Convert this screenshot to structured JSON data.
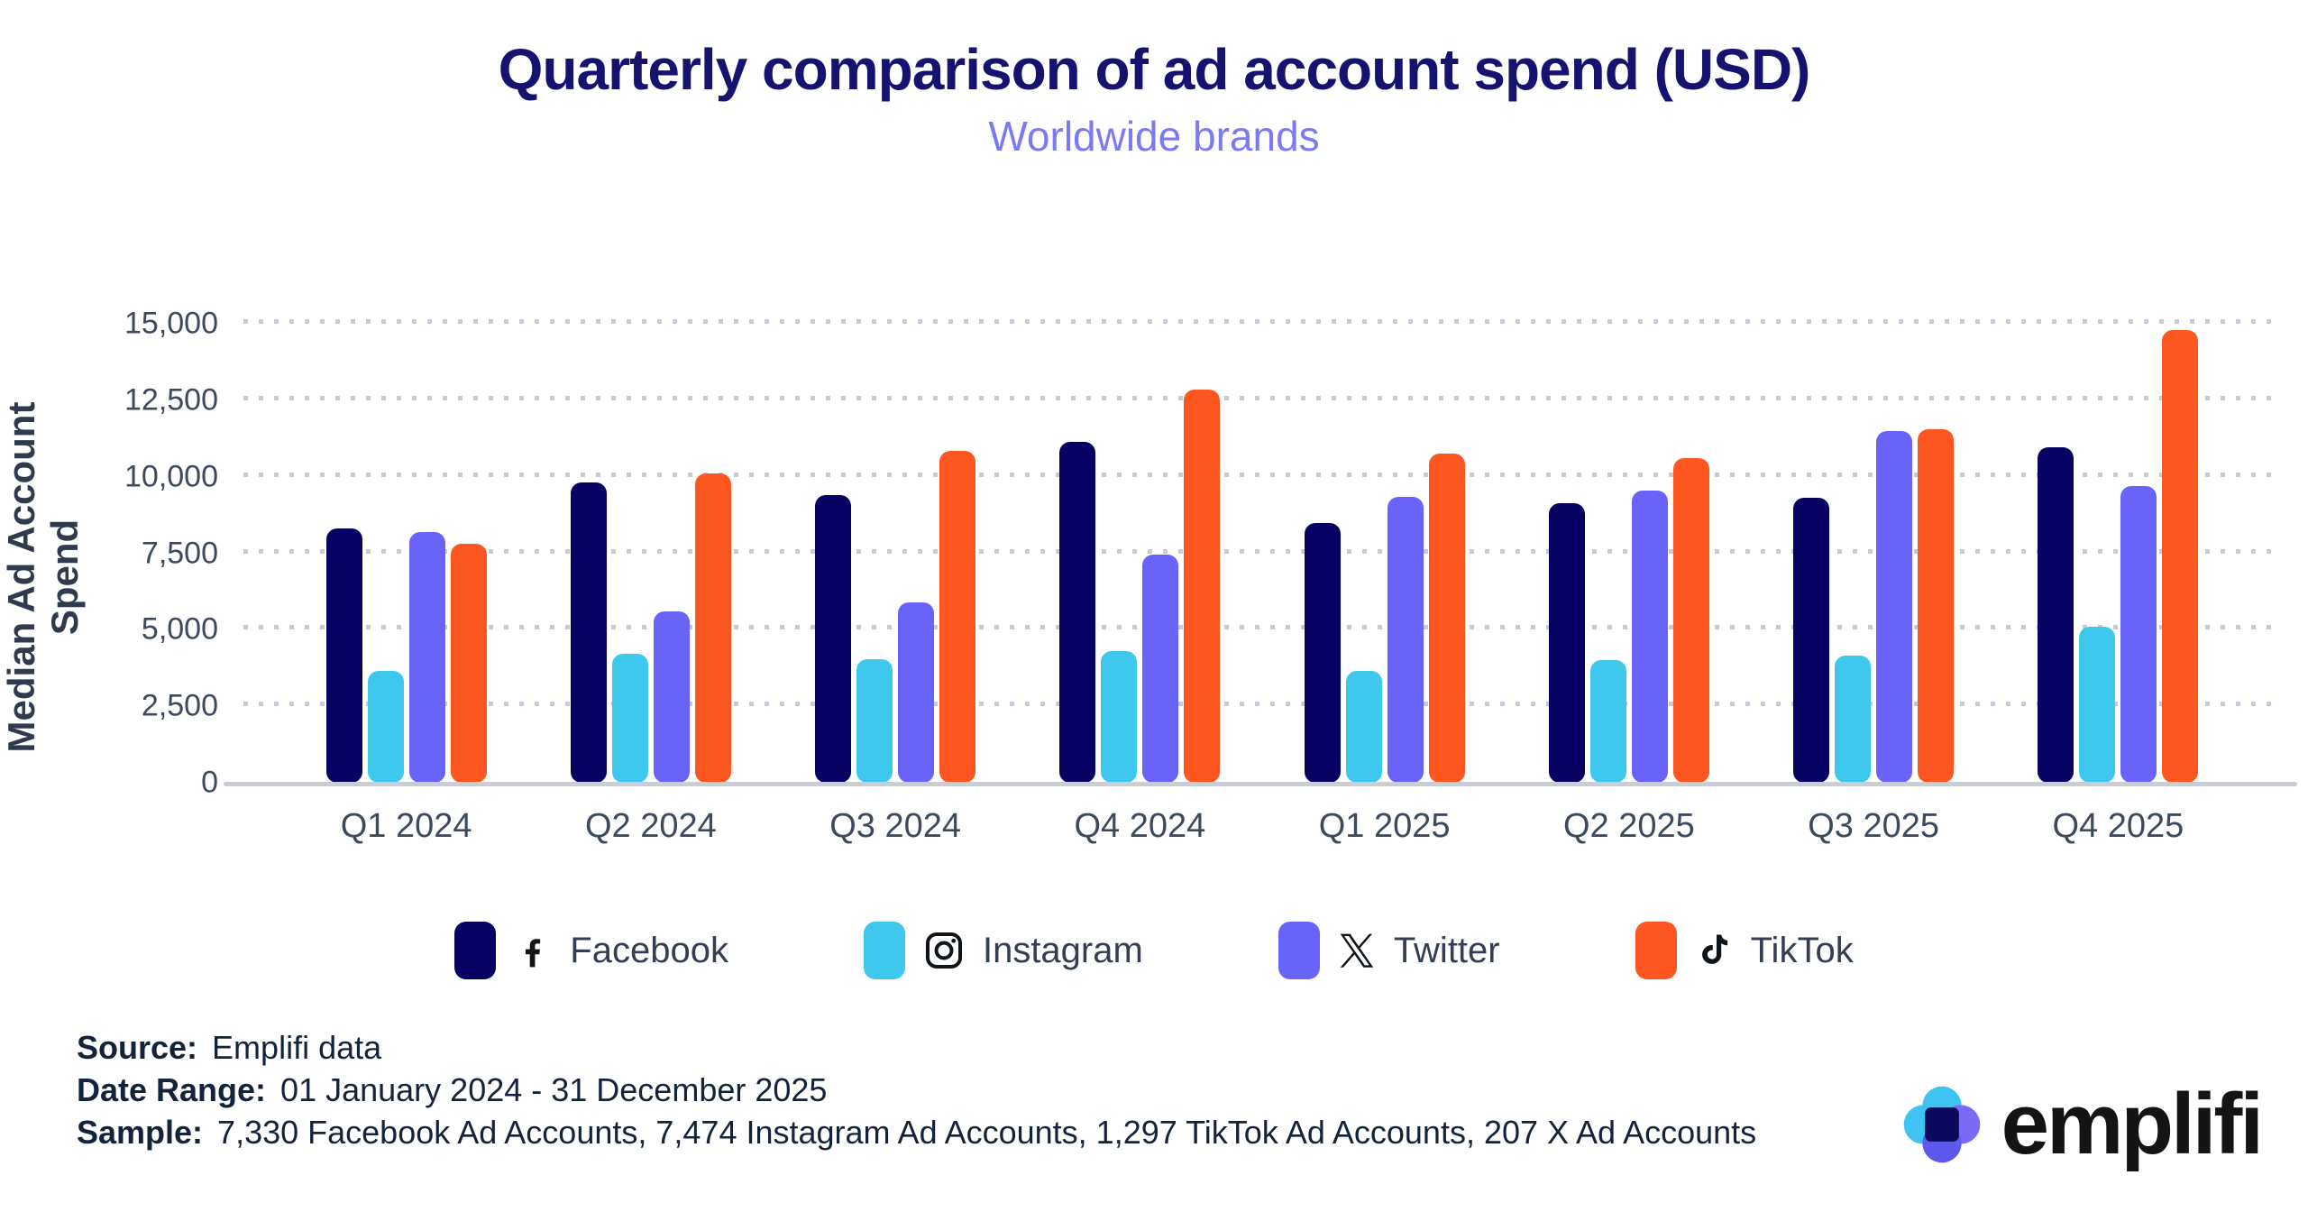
{
  "header": {
    "title": "Quarterly comparison of ad account spend (USD)",
    "subtitle": "Worldwide brands"
  },
  "chart_data": {
    "type": "bar",
    "title": "Quarterly comparison of ad account spend (USD)",
    "subtitle": "Worldwide brands",
    "xlabel": "",
    "ylabel": "Median Ad Account Spend",
    "ylim": [
      0,
      15000
    ],
    "yticks": [
      0,
      2500,
      5000,
      7500,
      10000,
      12500,
      15000
    ],
    "ytick_labels": [
      "0",
      "2,500",
      "5,000",
      "7,500",
      "10,000",
      "12,500",
      "15,000"
    ],
    "grid": "horizontal-dotted",
    "legend_position": "bottom",
    "categories": [
      "Q1 2024",
      "Q2 2024",
      "Q3 2024",
      "Q4 2024",
      "Q1 2025",
      "Q2 2025",
      "Q3 2025",
      "Q4 2025"
    ],
    "series": [
      {
        "name": "Facebook",
        "color": "#070262",
        "values": [
          8300,
          9800,
          9400,
          11150,
          8500,
          9150,
          9300,
          10950
        ]
      },
      {
        "name": "Instagram",
        "color": "#3FC8EE",
        "values": [
          3650,
          4200,
          4050,
          4300,
          3650,
          4000,
          4150,
          5100
        ]
      },
      {
        "name": "Twitter",
        "color": "#6A63FA",
        "values": [
          8200,
          5600,
          5900,
          7450,
          9350,
          9550,
          11500,
          9700
        ]
      },
      {
        "name": "TikTok",
        "color": "#FD5621",
        "values": [
          7800,
          10100,
          10850,
          12850,
          10750,
          10600,
          11550,
          14800
        ]
      }
    ]
  },
  "legend": {
    "items": [
      {
        "label": "Facebook",
        "icon": "facebook-icon"
      },
      {
        "label": "Instagram",
        "icon": "instagram-icon"
      },
      {
        "label": "Twitter",
        "icon": "twitter-x-icon"
      },
      {
        "label": "TikTok",
        "icon": "tiktok-icon"
      }
    ]
  },
  "footer": {
    "rows": [
      {
        "label": "Source:",
        "value": "Emplifi data"
      },
      {
        "label": "Date Range:",
        "value": "01 January 2024 - 31 December 2025"
      },
      {
        "label": "Sample:",
        "value": "7,330 Facebook Ad Accounts, 7,474 Instagram Ad Accounts, 1,297 TikTok Ad Accounts, 207 X Ad Accounts"
      }
    ]
  },
  "logo": {
    "wordmark": "emplifi",
    "colors": {
      "cyan": "#3EC3F2",
      "purple": "#7A6BF7",
      "violet": "#5F5AEE",
      "navy": "#0D0A5E"
    }
  }
}
